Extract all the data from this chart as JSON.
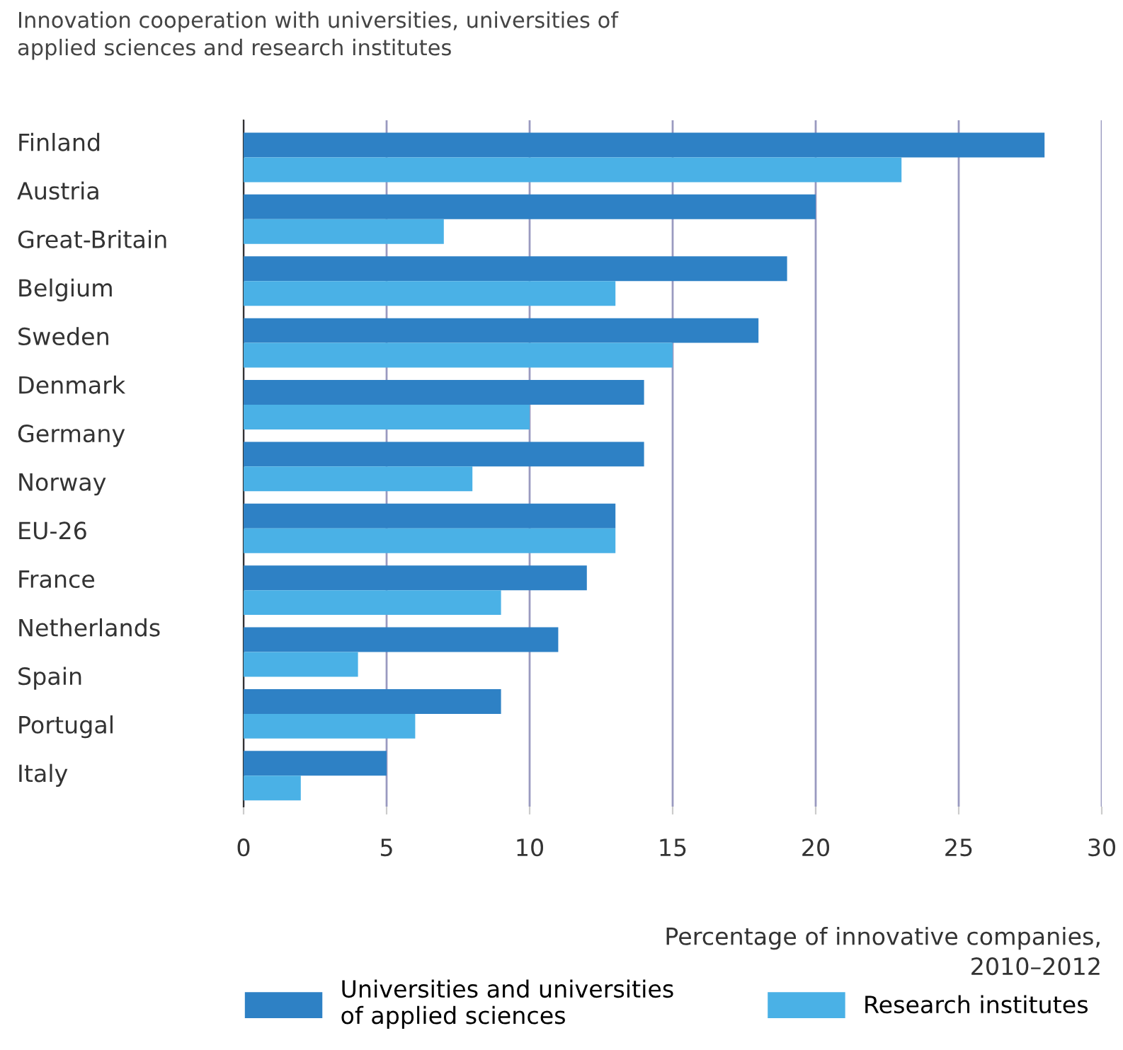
{
  "chart_data": {
    "type": "bar",
    "orientation": "horizontal",
    "title": "Innovation cooperation with universities, universities of\napplied sciences and research institutes",
    "xlabel": "Percentage of innovative companies,\n2010–2012",
    "categories": [
      null,
      null,
      null,
      null,
      null,
      null,
      null,
      null,
      null,
      null,
      null
    ],
    "annotations": [
      "Finland",
      "Austria",
      "Great-Britain",
      "Belgium",
      "Sweden",
      "Denmark",
      "Germany",
      "Norway",
      "EU-26",
      "France",
      "Netherlands",
      "Spain",
      "Portugal",
      "Italy"
    ],
    "series": [
      {
        "name": "Universities and universities\nof applied sciences",
        "color": "#2e81c5",
        "values": [
          28,
          20,
          19,
          18,
          14,
          14,
          13,
          12,
          11,
          9,
          5
        ]
      },
      {
        "name": "Research institutes",
        "color": "#4ab1e6",
        "values": [
          23,
          7,
          13,
          15,
          10,
          8,
          13,
          9,
          4,
          6,
          2
        ]
      }
    ],
    "xlim": [
      0,
      30
    ],
    "xticks": [
      0,
      5,
      10,
      15,
      20,
      25,
      30
    ],
    "grid": "x",
    "legend": "bottom"
  }
}
